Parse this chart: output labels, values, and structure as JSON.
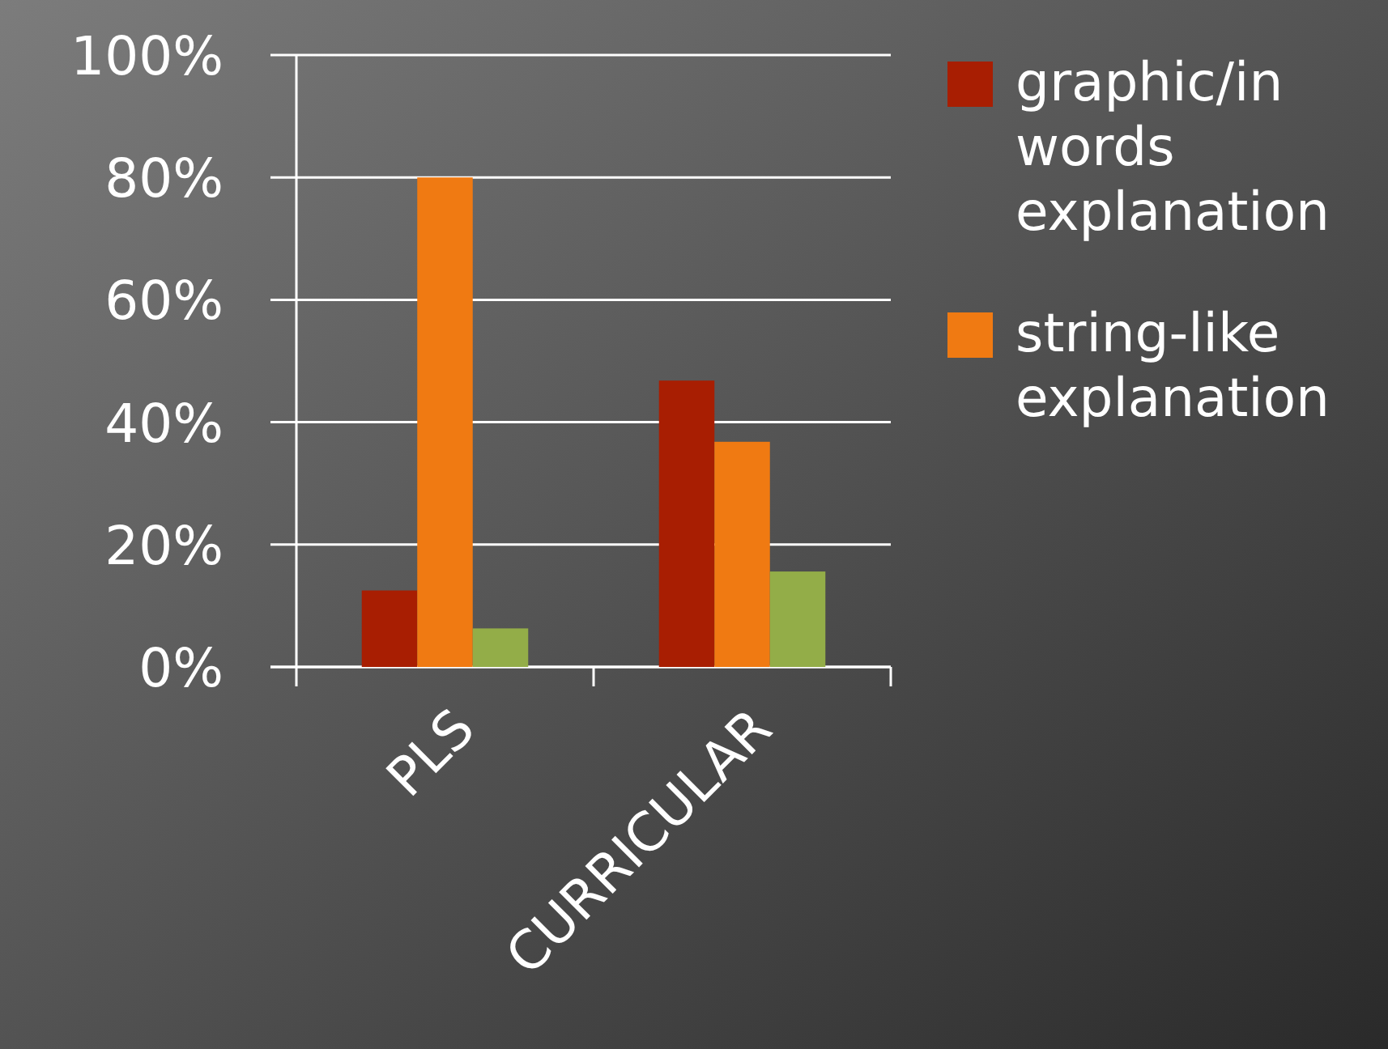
{
  "chart_data": {
    "type": "bar",
    "categories": [
      "PLS",
      "CURRICULAR"
    ],
    "series": [
      {
        "name": "graphic/in words explanation",
        "color": "#a81e02",
        "values": [
          12.5,
          46.8
        ]
      },
      {
        "name": "string-like explanation",
        "color": "#f07a12",
        "values": [
          80,
          36.8
        ]
      },
      {
        "color": "#93ad48",
        "values": [
          6.3,
          15.6
        ]
      }
    ],
    "ylim": [
      0,
      100
    ],
    "yticks": [
      {
        "value": 0,
        "label": "0%"
      },
      {
        "value": 20,
        "label": "20%"
      },
      {
        "value": 40,
        "label": "40%"
      },
      {
        "value": 60,
        "label": "60%"
      },
      {
        "value": 80,
        "label": "80%"
      },
      {
        "value": 100,
        "label": "100%"
      }
    ],
    "grid": "y",
    "legend": "right"
  }
}
